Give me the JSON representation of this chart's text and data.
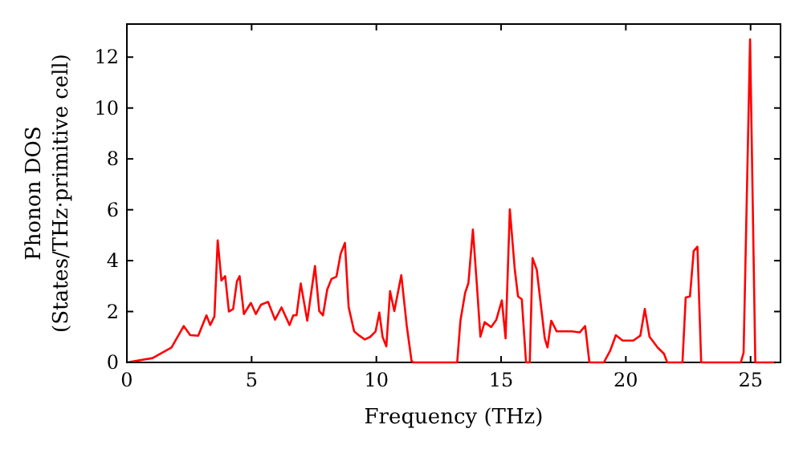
{
  "chart_data": {
    "type": "line",
    "xlabel": "Frequency (THz)",
    "ylabel": "Phonon DOS\n(States/THz·primitive cell)",
    "xlim": [
      0,
      26.2
    ],
    "ylim": [
      0,
      13.3
    ],
    "xticks": [
      0,
      5,
      10,
      15,
      20,
      25
    ],
    "yticks": [
      0,
      2,
      4,
      6,
      8,
      10,
      12
    ],
    "grid": false,
    "marker": "none",
    "line_style": "solid",
    "series": [
      {
        "color": "#ff0000",
        "x": [
          0,
          1.03,
          1.79,
          2.28,
          2.54,
          2.86,
          3.19,
          3.34,
          3.51,
          3.64,
          3.79,
          3.94,
          4.09,
          4.26,
          4.41,
          4.52,
          4.69,
          4.97,
          5.17,
          5.38,
          5.66,
          5.94,
          6.2,
          6.52,
          6.67,
          6.8,
          6.97,
          7.23,
          7.54,
          7.71,
          7.86,
          8.03,
          8.2,
          8.4,
          8.57,
          8.74,
          8.89,
          9.11,
          9.32,
          9.54,
          9.75,
          9.97,
          10.12,
          10.25,
          10.4,
          10.55,
          10.72,
          11.0,
          11.22,
          11.41,
          11.48,
          13.24,
          13.37,
          13.56,
          13.69,
          13.87,
          14.04,
          14.17,
          14.34,
          14.6,
          14.81,
          15.03,
          15.18,
          15.35,
          15.55,
          15.68,
          15.83,
          16.0,
          16.15,
          16.26,
          16.43,
          16.75,
          16.86,
          17.01,
          17.23,
          17.83,
          18.15,
          18.37,
          18.54,
          19.12,
          19.38,
          19.6,
          19.87,
          20.3,
          20.58,
          20.76,
          20.95,
          21.27,
          21.53,
          21.66,
          22.27,
          22.4,
          22.57,
          22.72,
          22.87,
          23.02,
          24.61,
          24.72,
          24.98,
          25.19,
          26.0
        ],
        "values": [
          0,
          0.17,
          0.59,
          1.43,
          1.07,
          1.05,
          1.85,
          1.47,
          1.81,
          4.8,
          3.22,
          3.39,
          2.0,
          2.1,
          3.18,
          3.39,
          1.9,
          2.34,
          1.9,
          2.27,
          2.38,
          1.68,
          2.16,
          1.47,
          1.85,
          1.85,
          3.1,
          1.64,
          3.79,
          2.02,
          1.85,
          2.86,
          3.28,
          3.37,
          4.27,
          4.7,
          2.17,
          1.22,
          1.05,
          0.9,
          1.0,
          1.22,
          1.96,
          1.0,
          0.63,
          2.8,
          2.02,
          3.43,
          1.43,
          0.06,
          0,
          0,
          1.64,
          2.74,
          3.12,
          5.22,
          2.9,
          1.01,
          1.58,
          1.39,
          1.68,
          2.44,
          0.95,
          6.02,
          3.64,
          2.59,
          2.48,
          0,
          0,
          4.1,
          3.64,
          0.95,
          0.59,
          1.64,
          1.22,
          1.22,
          1.18,
          1.43,
          0,
          0,
          0.48,
          1.07,
          0.86,
          0.86,
          1.05,
          2.1,
          1.01,
          0.59,
          0.34,
          0,
          0,
          2.55,
          2.59,
          4.38,
          4.55,
          0,
          0,
          0.38,
          12.7,
          0,
          0
        ]
      }
    ]
  }
}
